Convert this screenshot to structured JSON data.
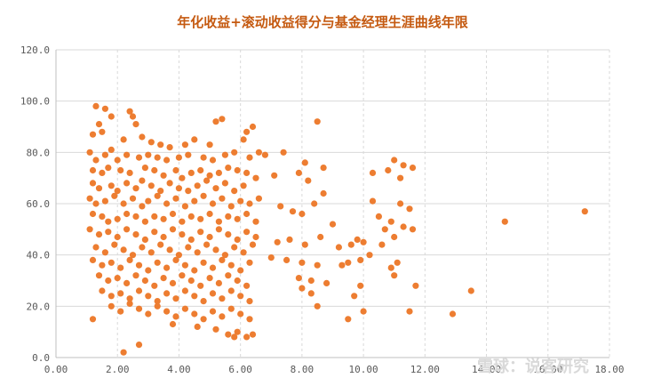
{
  "chart_data": {
    "type": "scatter",
    "title": "年化收益+滚动收益得分与基金经理生涯曲线年限",
    "xlabel": "",
    "ylabel": "",
    "xlim": [
      0,
      18
    ],
    "ylim": [
      0,
      120
    ],
    "x_ticks": [
      "0.00",
      "2.00",
      "4.00",
      "6.00",
      "8.00",
      "10.00",
      "12.00",
      "14.00",
      "16.00",
      "18.00"
    ],
    "y_ticks": [
      "0.0",
      "20.0",
      "40.0",
      "60.0",
      "80.0",
      "100.0",
      "120.0"
    ],
    "grid": {
      "horizontal": "solid",
      "vertical": "dashed"
    },
    "legend": "none",
    "colors": {
      "point": "#ED7D31",
      "title": "#C55A11",
      "grid": "#d9d9d9",
      "axis": "#bfbfbf"
    },
    "points": [
      [
        1.3,
        98
      ],
      [
        1.6,
        97
      ],
      [
        1.8,
        94
      ],
      [
        2.4,
        96
      ],
      [
        2.5,
        94
      ],
      [
        2.6,
        91
      ],
      [
        1.4,
        91
      ],
      [
        1.5,
        88
      ],
      [
        1.2,
        87
      ],
      [
        2.2,
        85
      ],
      [
        2.8,
        86
      ],
      [
        3.1,
        84
      ],
      [
        3.4,
        83
      ],
      [
        3.7,
        82
      ],
      [
        4.2,
        83
      ],
      [
        4.5,
        85
      ],
      [
        5.0,
        83
      ],
      [
        5.2,
        92
      ],
      [
        5.4,
        93
      ],
      [
        6.2,
        88
      ],
      [
        6.4,
        90
      ],
      [
        6.1,
        85
      ],
      [
        6.6,
        80
      ],
      [
        6.8,
        79
      ],
      [
        1.1,
        80
      ],
      [
        1.3,
        77
      ],
      [
        1.6,
        79
      ],
      [
        1.8,
        81
      ],
      [
        2.0,
        77
      ],
      [
        2.3,
        79
      ],
      [
        2.7,
        78
      ],
      [
        3.0,
        79
      ],
      [
        3.3,
        78
      ],
      [
        3.6,
        77
      ],
      [
        4.0,
        78
      ],
      [
        4.3,
        79
      ],
      [
        4.8,
        78
      ],
      [
        5.1,
        77
      ],
      [
        5.5,
        79
      ],
      [
        5.8,
        80
      ],
      [
        6.3,
        78
      ],
      [
        1.2,
        73
      ],
      [
        1.5,
        72
      ],
      [
        1.7,
        74
      ],
      [
        2.1,
        73
      ],
      [
        2.4,
        72
      ],
      [
        2.9,
        74
      ],
      [
        3.2,
        73
      ],
      [
        3.5,
        71
      ],
      [
        3.9,
        73
      ],
      [
        4.1,
        70
      ],
      [
        4.4,
        72
      ],
      [
        4.7,
        73
      ],
      [
        5.0,
        71
      ],
      [
        5.3,
        72
      ],
      [
        5.6,
        74
      ],
      [
        5.9,
        73
      ],
      [
        6.2,
        72
      ],
      [
        6.5,
        70
      ],
      [
        1.2,
        68
      ],
      [
        1.4,
        66
      ],
      [
        1.8,
        67
      ],
      [
        2.0,
        65
      ],
      [
        2.3,
        68
      ],
      [
        2.6,
        66
      ],
      [
        2.8,
        69
      ],
      [
        3.1,
        67
      ],
      [
        3.4,
        65
      ],
      [
        3.7,
        68
      ],
      [
        4.0,
        66
      ],
      [
        4.3,
        65
      ],
      [
        4.6,
        67
      ],
      [
        4.9,
        69
      ],
      [
        5.2,
        66
      ],
      [
        5.5,
        68
      ],
      [
        5.8,
        65
      ],
      [
        6.1,
        67
      ],
      [
        1.1,
        62
      ],
      [
        1.3,
        60
      ],
      [
        1.6,
        61
      ],
      [
        1.9,
        63
      ],
      [
        2.2,
        60
      ],
      [
        2.5,
        62
      ],
      [
        2.8,
        59
      ],
      [
        3.0,
        61
      ],
      [
        3.3,
        63
      ],
      [
        3.6,
        60
      ],
      [
        3.9,
        62
      ],
      [
        4.2,
        59
      ],
      [
        4.5,
        61
      ],
      [
        4.8,
        63
      ],
      [
        5.1,
        60
      ],
      [
        5.4,
        62
      ],
      [
        5.7,
        59
      ],
      [
        6.0,
        61
      ],
      [
        6.3,
        60
      ],
      [
        6.6,
        62
      ],
      [
        1.2,
        56
      ],
      [
        1.5,
        55
      ],
      [
        1.7,
        53
      ],
      [
        2.0,
        54
      ],
      [
        2.3,
        56
      ],
      [
        2.6,
        55
      ],
      [
        2.9,
        53
      ],
      [
        3.2,
        55
      ],
      [
        3.5,
        54
      ],
      [
        3.8,
        56
      ],
      [
        4.1,
        53
      ],
      [
        4.4,
        55
      ],
      [
        4.7,
        54
      ],
      [
        5.0,
        56
      ],
      [
        5.3,
        53
      ],
      [
        5.6,
        55
      ],
      [
        5.9,
        54
      ],
      [
        6.2,
        56
      ],
      [
        6.5,
        53
      ],
      [
        1.1,
        50
      ],
      [
        1.4,
        48
      ],
      [
        1.7,
        49
      ],
      [
        2.0,
        47
      ],
      [
        2.3,
        50
      ],
      [
        2.6,
        48
      ],
      [
        2.9,
        46
      ],
      [
        3.2,
        49
      ],
      [
        3.5,
        47
      ],
      [
        3.8,
        50
      ],
      [
        4.1,
        48
      ],
      [
        4.4,
        46
      ],
      [
        4.7,
        49
      ],
      [
        5.0,
        47
      ],
      [
        5.3,
        50
      ],
      [
        5.6,
        48
      ],
      [
        5.9,
        46
      ],
      [
        6.2,
        49
      ],
      [
        6.5,
        47
      ],
      [
        1.3,
        43
      ],
      [
        1.6,
        41
      ],
      [
        1.9,
        44
      ],
      [
        2.2,
        42
      ],
      [
        2.5,
        40
      ],
      [
        2.8,
        43
      ],
      [
        3.1,
        41
      ],
      [
        3.4,
        44
      ],
      [
        3.7,
        42
      ],
      [
        4.0,
        40
      ],
      [
        4.3,
        43
      ],
      [
        4.6,
        41
      ],
      [
        4.9,
        44
      ],
      [
        5.2,
        42
      ],
      [
        5.5,
        40
      ],
      [
        5.8,
        43
      ],
      [
        6.1,
        41
      ],
      [
        6.4,
        44
      ],
      [
        1.2,
        38
      ],
      [
        1.5,
        36
      ],
      [
        1.8,
        37
      ],
      [
        2.1,
        35
      ],
      [
        2.4,
        38
      ],
      [
        2.7,
        36
      ],
      [
        3.0,
        34
      ],
      [
        3.3,
        37
      ],
      [
        3.6,
        35
      ],
      [
        3.9,
        38
      ],
      [
        4.2,
        36
      ],
      [
        4.5,
        34
      ],
      [
        4.8,
        37
      ],
      [
        5.1,
        35
      ],
      [
        5.4,
        38
      ],
      [
        5.7,
        36
      ],
      [
        6.0,
        34
      ],
      [
        6.3,
        37
      ],
      [
        1.4,
        32
      ],
      [
        1.7,
        30
      ],
      [
        2.0,
        31
      ],
      [
        2.3,
        29
      ],
      [
        2.6,
        32
      ],
      [
        2.9,
        30
      ],
      [
        3.2,
        28
      ],
      [
        3.5,
        31
      ],
      [
        3.8,
        29
      ],
      [
        4.1,
        32
      ],
      [
        4.4,
        30
      ],
      [
        4.7,
        28
      ],
      [
        5.0,
        31
      ],
      [
        5.3,
        29
      ],
      [
        5.6,
        32
      ],
      [
        5.9,
        30
      ],
      [
        6.2,
        28
      ],
      [
        1.5,
        26
      ],
      [
        1.8,
        24
      ],
      [
        2.1,
        25
      ],
      [
        2.4,
        23
      ],
      [
        2.7,
        26
      ],
      [
        3.0,
        24
      ],
      [
        3.3,
        22
      ],
      [
        3.6,
        25
      ],
      [
        3.9,
        23
      ],
      [
        4.2,
        26
      ],
      [
        4.5,
        24
      ],
      [
        4.8,
        22
      ],
      [
        5.1,
        25
      ],
      [
        5.4,
        23
      ],
      [
        5.7,
        26
      ],
      [
        6.0,
        24
      ],
      [
        6.3,
        22
      ],
      [
        1.2,
        15
      ],
      [
        1.8,
        20
      ],
      [
        2.1,
        18
      ],
      [
        2.4,
        21
      ],
      [
        2.7,
        19
      ],
      [
        3.0,
        17
      ],
      [
        3.3,
        20
      ],
      [
        3.6,
        18
      ],
      [
        3.9,
        16
      ],
      [
        4.2,
        19
      ],
      [
        4.5,
        17
      ],
      [
        4.8,
        15
      ],
      [
        5.1,
        18
      ],
      [
        5.4,
        16
      ],
      [
        5.7,
        19
      ],
      [
        6.0,
        17
      ],
      [
        6.3,
        15
      ],
      [
        3.8,
        13
      ],
      [
        4.6,
        12
      ],
      [
        5.2,
        11
      ],
      [
        5.6,
        9
      ],
      [
        5.9,
        10
      ],
      [
        6.2,
        8
      ],
      [
        6.4,
        9
      ],
      [
        5.8,
        8
      ],
      [
        2.7,
        5
      ],
      [
        2.2,
        2
      ],
      [
        7.1,
        71
      ],
      [
        7.4,
        80
      ],
      [
        7.9,
        72
      ],
      [
        8.2,
        69
      ],
      [
        8.7,
        64
      ],
      [
        8.0,
        56
      ],
      [
        7.3,
        59
      ],
      [
        7.7,
        57
      ],
      [
        8.4,
        60
      ],
      [
        9.0,
        52
      ],
      [
        7.2,
        45
      ],
      [
        7.6,
        46
      ],
      [
        8.1,
        44
      ],
      [
        8.6,
        47
      ],
      [
        9.2,
        43
      ],
      [
        7.0,
        39
      ],
      [
        7.5,
        38
      ],
      [
        8.0,
        37
      ],
      [
        8.5,
        36
      ],
      [
        9.3,
        36
      ],
      [
        7.9,
        31
      ],
      [
        8.3,
        30
      ],
      [
        8.8,
        29
      ],
      [
        8.0,
        27
      ],
      [
        8.3,
        25
      ],
      [
        8.5,
        20
      ],
      [
        8.5,
        92
      ],
      [
        8.7,
        74
      ],
      [
        8.1,
        76
      ],
      [
        9.6,
        44
      ],
      [
        9.8,
        46
      ],
      [
        10.0,
        45
      ],
      [
        10.3,
        61
      ],
      [
        10.5,
        55
      ],
      [
        10.7,
        50
      ],
      [
        9.5,
        37
      ],
      [
        9.9,
        38
      ],
      [
        10.2,
        40
      ],
      [
        9.9,
        28
      ],
      [
        9.7,
        24
      ],
      [
        9.5,
        15
      ],
      [
        10.0,
        18
      ],
      [
        10.3,
        72
      ],
      [
        10.8,
        73
      ],
      [
        11.0,
        77
      ],
      [
        11.3,
        75
      ],
      [
        11.6,
        74
      ],
      [
        11.2,
        60
      ],
      [
        11.5,
        58
      ],
      [
        10.9,
        53
      ],
      [
        11.3,
        51
      ],
      [
        11.6,
        50
      ],
      [
        11.0,
        47
      ],
      [
        10.9,
        35
      ],
      [
        11.1,
        37
      ],
      [
        11.0,
        32
      ],
      [
        11.7,
        28
      ],
      [
        11.5,
        18
      ],
      [
        10.6,
        44
      ],
      [
        11.2,
        70
      ],
      [
        12.9,
        17
      ],
      [
        13.5,
        26
      ],
      [
        14.6,
        53
      ],
      [
        17.2,
        57
      ]
    ]
  },
  "watermark": "雪球：说客研究"
}
